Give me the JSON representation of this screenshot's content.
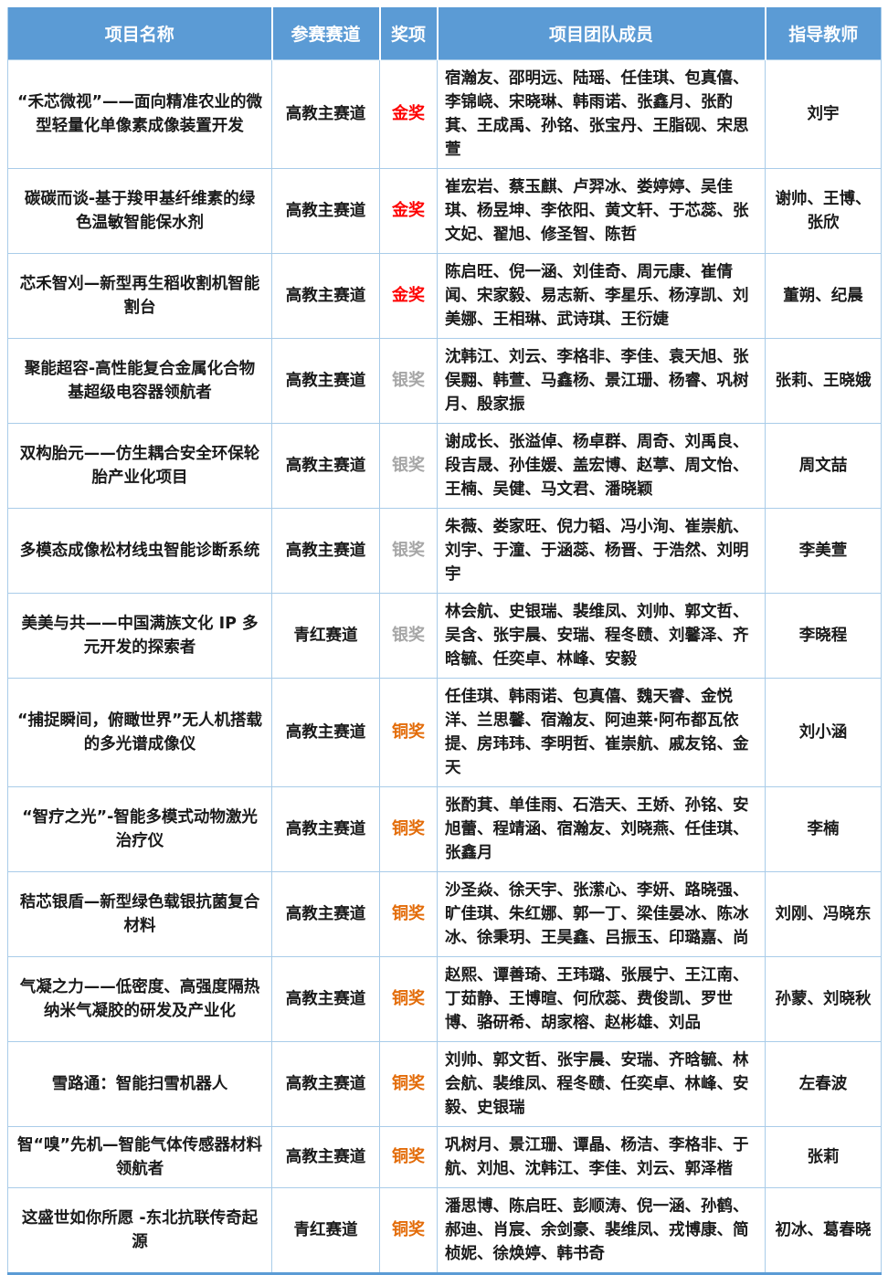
{
  "colors": {
    "header_bg": "#5B9BD5",
    "header_text": "#FFFFFF",
    "grid_border": "#A9CCE9",
    "bottom_border": "#5B9BD5",
    "award_gold": "#FE0000",
    "award_silver": "#A6A6A6",
    "award_bronze": "#E36C09"
  },
  "table": {
    "headers": [
      "项目名称",
      "参赛赛道",
      "奖项",
      "项目团队成员",
      "指导教师"
    ],
    "rows": [
      {
        "name": "“禾芯微视”——面向精准农业的微型轻量化单像素成像装置开发",
        "track": "高教主赛道",
        "award": "金奖",
        "award_type": "gold",
        "members": "宿瀚友、邵明远、陆瑶、任佳琪、包真僖、李锦峣、宋晓琳、韩雨诺、张鑫月、张酌萁、王成禹、孙铭、张宝丹、王脂砚、宋思萱",
        "advisors": "刘宇"
      },
      {
        "name": "碳碳而谈-基于羧甲基纤维素的绿色温敏智能保水剂",
        "track": "高教主赛道",
        "award": "金奖",
        "award_type": "gold",
        "members": "崔宏岩、蔡玉麒、卢羿冰、娄婷婷、吴佳琪、杨昱坤、李依阳、黄文轩、于芯蕊、张文妃、翟旭、修圣智、陈哲",
        "advisors": "谢帅、王博、张欣"
      },
      {
        "name": "芯禾智刈—新型再生稻收割机智能割台",
        "track": "高教主赛道",
        "award": "金奖",
        "award_type": "gold",
        "members": "陈启旺、倪一涵、刘佳奇、周元康、崔倩闻、宋家毅、易志新、李星乐、杨淳凯、刘美娜、王相琳、武诗琪、王衍婕",
        "advisors": "董朔、纪晨"
      },
      {
        "name": "聚能超容-高性能复合金属化合物基超级电容器领航者",
        "track": "高教主赛道",
        "award": "银奖",
        "award_type": "silver",
        "members": "沈韩江、刘云、李格非、李佳、袁天旭、张俣翲、韩萱、马鑫杨、景江珊、杨睿、巩树月、殷家振",
        "advisors": "张莉、王晓娥"
      },
      {
        "name": "双构胎元——仿生耦合安全环保轮胎产业化项目",
        "track": "高教主赛道",
        "award": "银奖",
        "award_type": "silver",
        "members": "谢成长、张溢倬、杨卓群、周奇、刘禹良、段吉晟、孙佳媛、盖宏博、赵葶、周文怡、王楠、吴健、马文君、潘晓颖",
        "advisors": "周文喆"
      },
      {
        "name": "多模态成像松材线虫智能诊断系统",
        "track": "高教主赛道",
        "award": "银奖",
        "award_type": "silver",
        "members": "朱薇、娄家旺、倪力韬、冯小洵、崔崇航、刘宇、于潼、于涵蕊、杨晋、于浩然、刘明宇",
        "advisors": "李美萱"
      },
      {
        "name": "美美与共——中国满族文化 IP 多元开发的探索者",
        "track": "青红赛道",
        "award": "银奖",
        "award_type": "silver",
        "members": "林会航、史银瑞、裴维凤、刘帅、郭文哲、吴含、张宇晨、安瑞、程冬赜、刘馨泽、齐晗毓、任奕卓、林峰、安毅",
        "advisors": "李晓程"
      },
      {
        "name": "“捕捉瞬间，俯瞰世界”无人机搭载的多光谱成像仪",
        "track": "高教主赛道",
        "award": "铜奖",
        "award_type": "bronze",
        "members": "任佳琪、韩雨诺、包真僖、魏天睿、金悦洋、兰思馨、宿瀚友、阿迪莱·阿布都瓦依提、房玮玮、李明哲、崔崇航、戚友铭、金天",
        "advisors": "刘小涵"
      },
      {
        "name": "“智疗之光”-智能多模式动物激光治疗仪",
        "track": "高教主赛道",
        "award": "铜奖",
        "award_type": "bronze",
        "members": "张酌萁、单佳雨、石浩天、王娇、孙铭、安旭蕾、程靖涵、宿瀚友、刘晓燕、任佳琪、张鑫月",
        "advisors": "李楠"
      },
      {
        "name": "秸芯银盾—新型绿色载银抗菌复合材料",
        "track": "高教主赛道",
        "award": "铜奖",
        "award_type": "bronze",
        "members": "沙圣焱、徐天宇、张潆心、李妍、路晓强、旷佳琪、朱红娜、郭一丁、梁佳晏冰、陈冰冰、徐秉玥、王昊鑫、吕振玉、印璐嘉、尚",
        "advisors": "刘刚、冯晓东"
      },
      {
        "name": "气凝之力——低密度、高强度隔热纳米气凝胶的研发及产业化",
        "track": "高教主赛道",
        "award": "铜奖",
        "award_type": "bronze",
        "members": "赵熙、谭善琦、王玮璐、张展宁、王江南、丁茹静、王博暄、何欣蕊、费俊凯、罗世博、骆研希、胡家榕、赵彬雄、刘品",
        "advisors": "孙蒙、刘晓秋"
      },
      {
        "name": "雪路通：智能扫雪机器人",
        "track": "高教主赛道",
        "award": "铜奖",
        "award_type": "bronze",
        "members": "刘帅、郭文哲、张宇晨、安瑞、齐晗毓、林会航、裴维凤、程冬赜、任奕卓、林峰、安毅、史银瑞",
        "advisors": "左春波"
      },
      {
        "name": "智“嗅”先机—智能气体传感器材料领航者",
        "track": "高教主赛道",
        "award": "铜奖",
        "award_type": "bronze",
        "members": "巩树月、景江珊、谭晶、杨洁、李格非、于航、刘旭、沈韩江、李佳、刘云、郭泽楷",
        "advisors": "张莉"
      },
      {
        "name": "这盛世如你所愿 -东北抗联传奇起源",
        "track": "青红赛道",
        "award": "铜奖",
        "award_type": "bronze",
        "members": "潘思博、陈启旺、彭顺涛、倪一涵、孙鹤、郝迪、肖宸、余剑豪、裴维凤、戎博康、简桢妮、徐焕婷、韩书奇",
        "advisors": "初冰、葛春晓"
      }
    ]
  }
}
